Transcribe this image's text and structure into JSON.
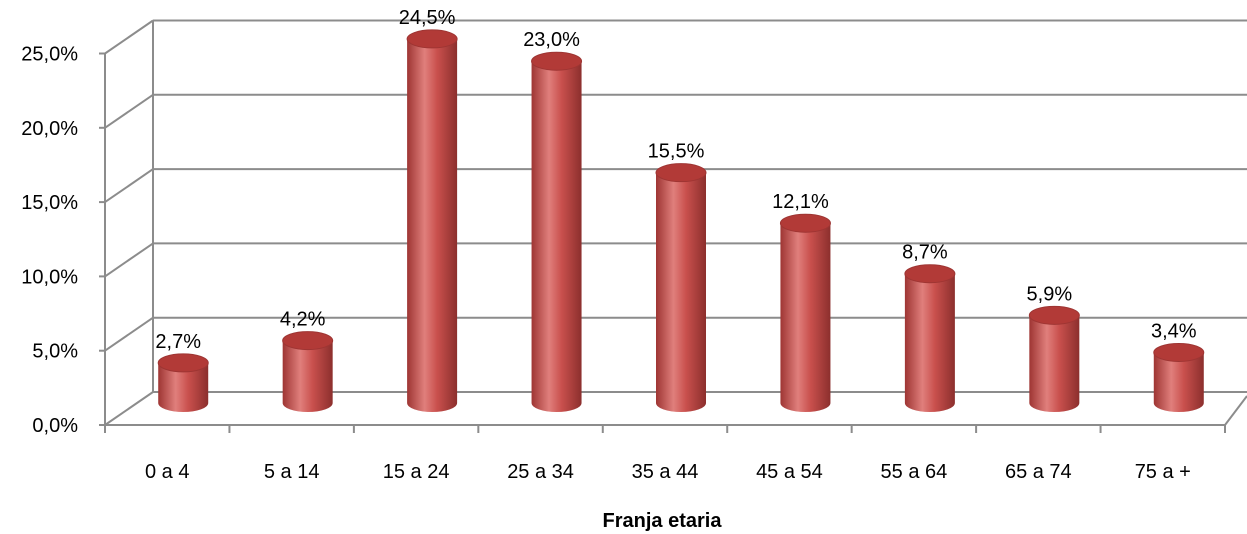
{
  "chart_data": {
    "type": "bar",
    "style": "3d-cylinder",
    "xlabel": "Franja etaria",
    "ylabel": "",
    "categories": [
      "0 a 4",
      "5 a 14",
      "15 a 24",
      "25 a 34",
      "35 a 44",
      "45 a 54",
      "55 a 64",
      "65 a 74",
      "75 a +"
    ],
    "values": [
      2.7,
      4.2,
      24.5,
      23.0,
      15.5,
      12.1,
      8.7,
      5.9,
      3.4
    ],
    "data_labels": [
      "2,7%",
      "4,2%",
      "24,5%",
      "23,0%",
      "15,5%",
      "12,1%",
      "8,7%",
      "5,9%",
      "3,4%"
    ],
    "y_ticks": [
      "0,0%",
      "5,0%",
      "10,0%",
      "15,0%",
      "20,0%",
      "25,0%"
    ],
    "ylim": [
      0,
      25
    ],
    "grid": true,
    "legend": "none",
    "colors": {
      "bar_fill": "#c0504d",
      "bar_highlight": "#e07f7c",
      "bar_shadow": "#8c2f2d",
      "bar_top": "#b23a37",
      "grid": "#8c8c8c"
    }
  }
}
